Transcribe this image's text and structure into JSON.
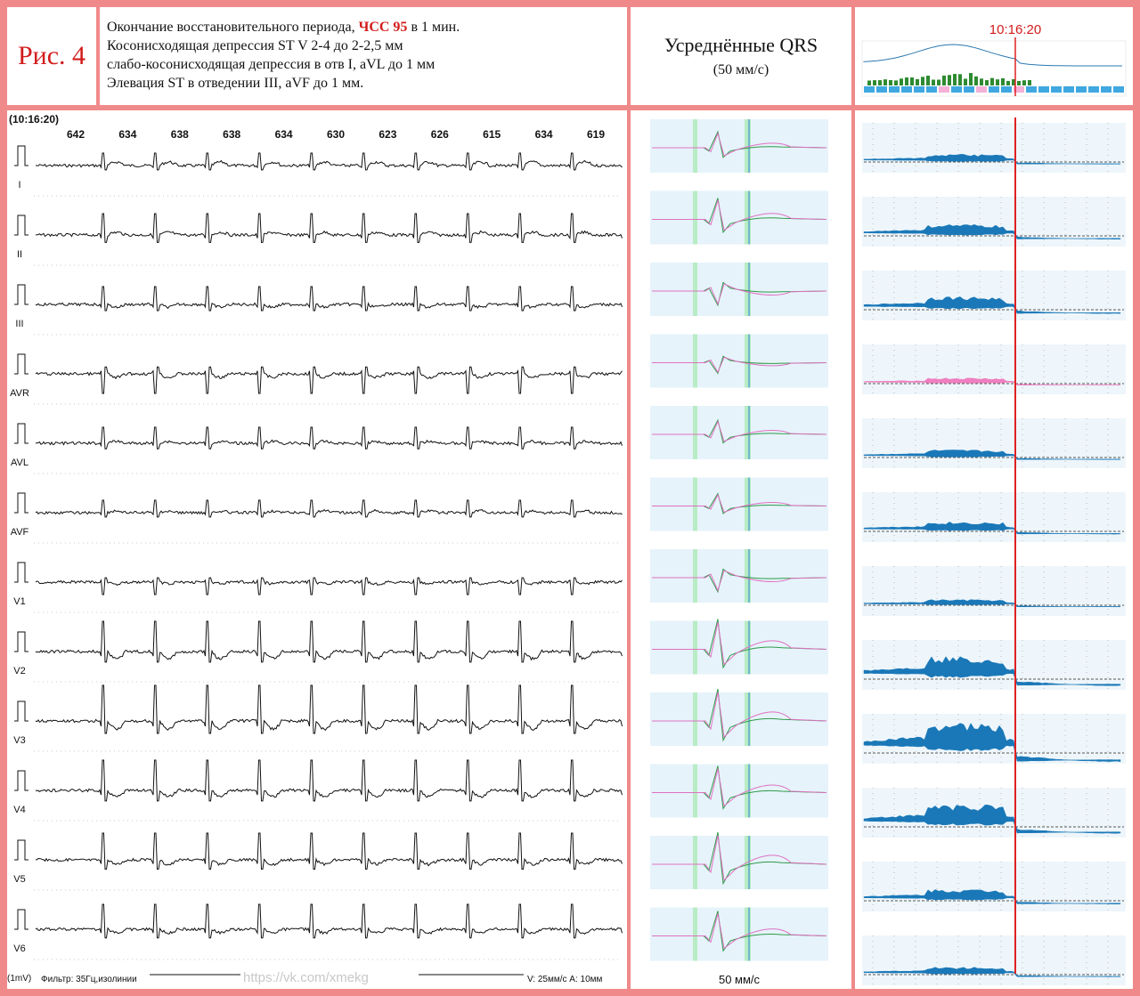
{
  "figure_label": "Рис. 4",
  "description": {
    "line1_pre": "Окончание восстановительного периода, ",
    "line1_hl": "ЧСС 95",
    "line1_post": " в 1 мин.",
    "line2": "Косонисходящая депрессия ST V 2-4 до 2-2,5 мм",
    "line3": "слабо-косонисходящая депрессия в отв I, aVL до 1 мм",
    "line4": "Элевация ST в отведении III, aVF до 1 мм."
  },
  "averaged": {
    "title": "Усреднённые QRS",
    "subtitle": "(50 мм/с)",
    "footer": "50 мм/с"
  },
  "trend": {
    "time": "10:16:20"
  },
  "ecg": {
    "timestamp": "(10:16:20)",
    "rr_intervals": [
      "642",
      "634",
      "638",
      "638",
      "634",
      "630",
      "623",
      "626",
      "615",
      "634",
      "619"
    ],
    "leads": [
      "I",
      "II",
      "III",
      "AVR",
      "AVL",
      "AVF",
      "V1",
      "V2",
      "V3",
      "V4",
      "V5",
      "V6"
    ],
    "calibration_label": "(1mV)",
    "filter_label": "Фильтр: 35Гц,изолинии",
    "watermark": "https://vk.com/xmekg",
    "speed_label": "V: 25мм/с  A: 10мм"
  },
  "colors": {
    "accent_red": "#d21c1c",
    "border": "#f08a8a",
    "trend_blue": "#1a78b8",
    "trend_pink": "#ef7fc0",
    "avg_green": "#2e9a48",
    "avg_pink": "#e070c0"
  }
}
